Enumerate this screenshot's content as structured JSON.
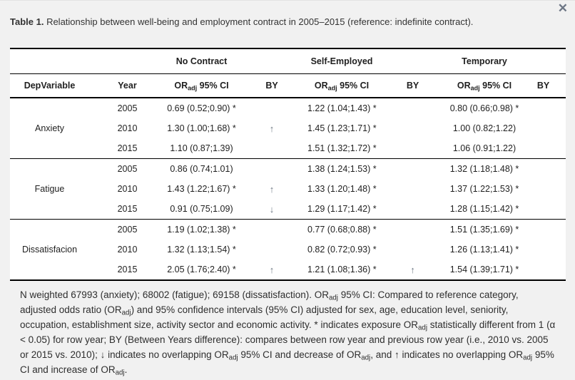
{
  "page": {
    "close_icon": "✕"
  },
  "title": {
    "prefix": "Table 1.",
    "text": " Relationship between well-being and employment contract in 2005–2015 (reference: indefinite contract)."
  },
  "table": {
    "group_headers": [
      "No Contract",
      "Self-Employed",
      "Temporary"
    ],
    "col_headers": {
      "dep": "DepVariable",
      "year": "Year",
      "or_segments": [
        {
          "t": "OR"
        },
        {
          "t": "adj",
          "sub": true
        },
        {
          "t": " 95% CI"
        }
      ],
      "by": "BY"
    },
    "groups": [
      {
        "dep": "Anxiety",
        "rows": [
          {
            "year": "2005",
            "nc_or": "0.69 (0.52;0.90) *",
            "nc_by": "",
            "se_or": "1.22 (1.04;1.43) *",
            "se_by": "",
            "tm_or": "0.80 (0.66;0.98) *",
            "tm_by": ""
          },
          {
            "year": "2010",
            "nc_or": "1.30 (1.00;1.68) *",
            "nc_by": "↑",
            "se_or": "1.45 (1.23;1.71) *",
            "se_by": "",
            "tm_or": "1.00 (0.82;1.22)",
            "tm_by": ""
          },
          {
            "year": "2015",
            "nc_or": "1.10 (0.87;1.39)",
            "nc_by": "",
            "se_or": "1.51 (1.32;1.72) *",
            "se_by": "",
            "tm_or": "1.06 (0.91;1.22)",
            "tm_by": ""
          }
        ]
      },
      {
        "dep": "Fatigue",
        "rows": [
          {
            "year": "2005",
            "nc_or": "0.86 (0.74;1.01)",
            "nc_by": "",
            "se_or": "1.38 (1.24;1.53) *",
            "se_by": "",
            "tm_or": "1.32 (1.18;1.48) *",
            "tm_by": ""
          },
          {
            "year": "2010",
            "nc_or": "1.43 (1.22;1.67) *",
            "nc_by": "↑",
            "se_or": "1.33 (1.20;1.48) *",
            "se_by": "",
            "tm_or": "1.37 (1.22;1.53) *",
            "tm_by": ""
          },
          {
            "year": "2015",
            "nc_or": "0.91 (0.75;1.09)",
            "nc_by": "↓",
            "se_or": "1.29 (1.17;1.42) *",
            "se_by": "",
            "tm_or": "1.28 (1.15;1.42) *",
            "tm_by": ""
          }
        ]
      },
      {
        "dep": "Dissatisfacion",
        "rows": [
          {
            "year": "2005",
            "nc_or": "1.19 (1.02;1.38) *",
            "nc_by": "",
            "se_or": "0.77 (0.68;0.88) *",
            "se_by": "",
            "tm_or": "1.51 (1.35;1.69) *",
            "tm_by": ""
          },
          {
            "year": "2010",
            "nc_or": "1.32 (1.13;1.54) *",
            "nc_by": "",
            "se_or": "0.82 (0.72;0.93) *",
            "se_by": "",
            "tm_or": "1.26 (1.13;1.41) *",
            "tm_by": ""
          },
          {
            "year": "2015",
            "nc_or": "2.05 (1.76;2.40) *",
            "nc_by": "↑",
            "se_or": "1.21 (1.08;1.36) *",
            "se_by": "↑",
            "tm_or": "1.54 (1.39;1.71) *",
            "tm_by": ""
          }
        ]
      }
    ]
  },
  "footnote": {
    "segments": [
      {
        "t": "N weighted 67993 (anxiety); 68002 (fatigue); 69158 (dissatisfaction). OR"
      },
      {
        "t": "adj",
        "sub": true
      },
      {
        "t": " 95% CI: Compared to reference category, adjusted odds ratio (OR"
      },
      {
        "t": "adj",
        "sub": true
      },
      {
        "t": ") and 95% confidence intervals (95% CI) adjusted for sex, age, education level, seniority, occupation, establishment size, activity sector and economic activity. * indicates exposure OR"
      },
      {
        "t": "adj",
        "sub": true
      },
      {
        "t": " statistically different from 1 (α < 0.05) for row year; BY (Between Years difference): compares between row year and previous row year (i.e., 2010 vs. 2005 or 2015 vs. 2010); ↓ indicates no overlapping OR"
      },
      {
        "t": "adj",
        "sub": true
      },
      {
        "t": " 95% CI and decrease of OR"
      },
      {
        "t": "adj",
        "sub": true
      },
      {
        "t": ", and ↑ indicates no overlapping OR"
      },
      {
        "t": "adj",
        "sub": true
      },
      {
        "t": " 95% CI and increase of OR"
      },
      {
        "t": "adj",
        "sub": true
      },
      {
        "t": "."
      }
    ]
  }
}
